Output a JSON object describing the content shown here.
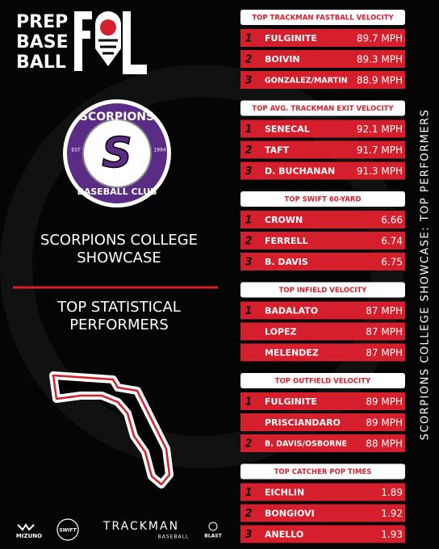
{
  "brand": {
    "lines": [
      "PREP",
      "BASE",
      "BALL"
    ]
  },
  "badge": {
    "top": "SCORPIONS",
    "letter": "S",
    "est": "EST",
    "year": "1994",
    "bottom": "BASEBALL CLUB"
  },
  "title": "SCORPIONS COLLEGE SHOWCASE",
  "subtitle": "TOP STATISTICAL PERFORMERS",
  "side_title": "SCORPIONS COLLEGE SHOWCASE: TOP PERFORMERS",
  "sections": [
    {
      "title": "TOP TRACKMAN FASTBALL VELOCITY",
      "rows": [
        {
          "rank": "1",
          "name": "FULGINITE",
          "value": "89.7 MPH"
        },
        {
          "rank": "2",
          "name": "BOIVIN",
          "value": "89.3 MPH"
        },
        {
          "rank": "3",
          "name": "GONZALEZ/MARTIN",
          "value": "88.9 MPH"
        }
      ]
    },
    {
      "title": "TOP AVG. TRACKMAN EXIT VELOCITY",
      "rows": [
        {
          "rank": "1",
          "name": "SENECAL",
          "value": "92.1 MPH"
        },
        {
          "rank": "2",
          "name": "TAFT",
          "value": "91.7 MPH"
        },
        {
          "rank": "3",
          "name": "D. BUCHANAN",
          "value": "91.3 MPH"
        }
      ]
    },
    {
      "title": "TOP SWIFT 60-YARD",
      "rows": [
        {
          "rank": "1",
          "name": "CROWN",
          "value": "6.66"
        },
        {
          "rank": "2",
          "name": "FERRELL",
          "value": "6.74"
        },
        {
          "rank": "3",
          "name": "B. DAVIS",
          "value": "6.75"
        }
      ]
    },
    {
      "title": "TOP INFIELD VELOCITY",
      "rows": [
        {
          "rank": "1",
          "name": "BADALATO",
          "value": "87 MPH"
        },
        {
          "name": "LOPEZ",
          "value": "87 MPH"
        },
        {
          "name": "MELENDEZ",
          "value": "87 MPH"
        }
      ]
    },
    {
      "title": "TOP OUTFIELD VELOCITY",
      "rows": [
        {
          "rank": "1",
          "name": "FULGINITE",
          "value": "89 MPH"
        },
        {
          "name": "PRISCIANDARO",
          "value": "89 MPH"
        },
        {
          "rank": "2",
          "name": "B. DAVIS/OSBORNE",
          "value": "88 MPH"
        }
      ]
    },
    {
      "title": "TOP CATCHER POP TIMES",
      "rows": [
        {
          "rank": "1",
          "name": "EICHLIN",
          "value": "1.89"
        },
        {
          "rank": "2",
          "name": "BONGIOVI",
          "value": "1.92"
        },
        {
          "rank": "3",
          "name": "ANELLO",
          "value": "1.93"
        }
      ]
    }
  ],
  "sponsors": [
    "MIZUNO",
    "SWIFT",
    "TRACKMAN",
    "BASEBALL",
    "BLAST"
  ]
}
